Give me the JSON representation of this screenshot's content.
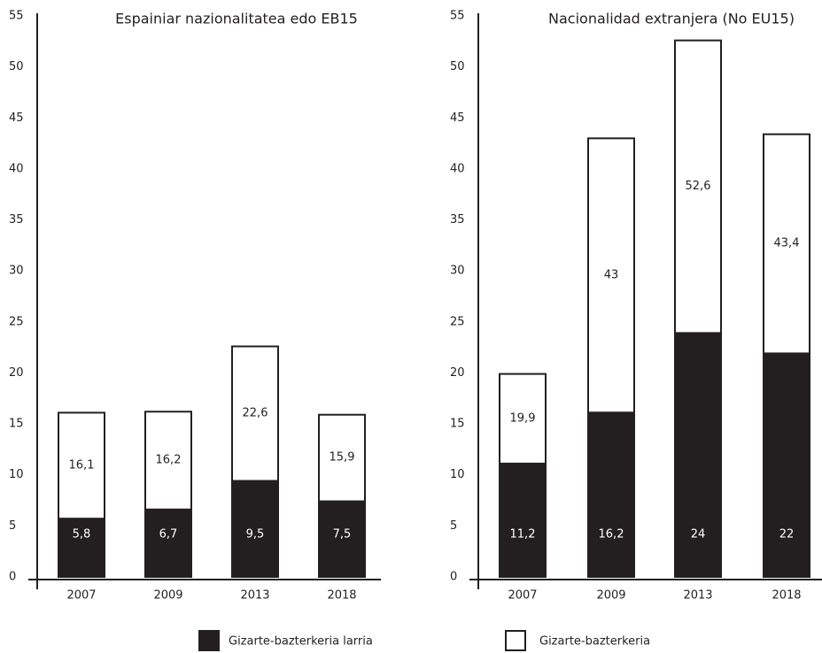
{
  "chart_data": [
    {
      "type": "bar",
      "title": "Espainiar nazionalitatea edo EB15",
      "categories": [
        "2007",
        "2009",
        "2013",
        "2018"
      ],
      "series": [
        {
          "name": "Gizarte-bazterkeria",
          "color": "#ffffff",
          "values": [
            16.1,
            16.2,
            22.6,
            15.9
          ],
          "value_labels": [
            "16,1",
            "16,2",
            "22,6",
            "15,9"
          ]
        },
        {
          "name": "Gizarte-bazterkeria larria",
          "color": "#231f20",
          "values": [
            5.8,
            6.7,
            9.5,
            7.5
          ],
          "value_labels": [
            "5,8",
            "6,7",
            "9,5",
            "7,5"
          ]
        }
      ],
      "ylim": [
        0,
        55
      ],
      "yticks": [
        0,
        5,
        10,
        15,
        20,
        25,
        30,
        35,
        40,
        45,
        50,
        55
      ]
    },
    {
      "type": "bar",
      "title": "Nacionalidad extranjera (No EU15)",
      "categories": [
        "2007",
        "2009",
        "2013",
        "2018"
      ],
      "series": [
        {
          "color": "#ffffff",
          "values": [
            19.9,
            43,
            52.6,
            43.4
          ],
          "value_labels": [
            "19,9",
            "43",
            "52,6",
            "43,4"
          ]
        },
        {
          "color": "#231f20",
          "values": [
            11.2,
            16.2,
            24,
            22
          ],
          "value_labels": [
            "11,2",
            "16,2",
            "24",
            "22"
          ]
        }
      ],
      "ylim": [
        0,
        55
      ],
      "yticks": [
        0,
        5,
        10,
        15,
        20,
        25,
        30,
        35,
        40,
        45,
        50,
        55
      ]
    }
  ]
}
